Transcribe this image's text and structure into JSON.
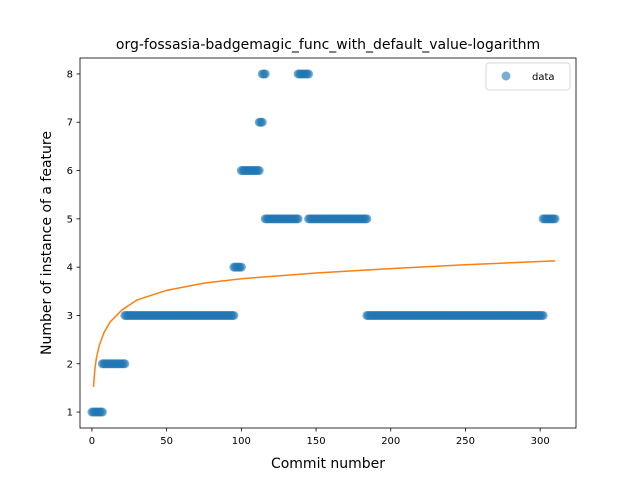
{
  "chart_data": {
    "type": "scatter",
    "title": "org-fossasia-badgemagic_func_with_default_value-logarithm",
    "xlabel": "Commit number",
    "ylabel": "Number of instance of a feature",
    "xlim": [
      -8,
      324
    ],
    "ylim": [
      0.67,
      8.33
    ],
    "xticks": [
      0,
      50,
      100,
      150,
      200,
      250,
      300
    ],
    "yticks": [
      1,
      2,
      3,
      4,
      5,
      6,
      7,
      8
    ],
    "grid": false,
    "legend": {
      "position": "top-right",
      "entries": [
        "data"
      ]
    },
    "colors": {
      "points": "#1f77b4",
      "fit": "#ff7f0e"
    },
    "series": [
      {
        "name": "data",
        "kind": "scatter",
        "segments": [
          {
            "x_start": 0,
            "x_end": 7,
            "y": 1
          },
          {
            "x_start": 7,
            "x_end": 22,
            "y": 2
          },
          {
            "x_start": 22,
            "x_end": 95,
            "y": 3
          },
          {
            "x_start": 95,
            "x_end": 100,
            "y": 4
          },
          {
            "x_start": 100,
            "x_end": 112,
            "y": 6
          },
          {
            "x_start": 112,
            "x_end": 114,
            "y": 7
          },
          {
            "x_start": 114,
            "x_end": 116,
            "y": 8
          },
          {
            "x_start": 116,
            "x_end": 138,
            "y": 5
          },
          {
            "x_start": 138,
            "x_end": 145,
            "y": 8
          },
          {
            "x_start": 145,
            "x_end": 184,
            "y": 5
          },
          {
            "x_start": 184,
            "x_end": 302,
            "y": 3
          },
          {
            "x_start": 302,
            "x_end": 310,
            "y": 5
          }
        ]
      },
      {
        "kind": "line",
        "model": "logarithmic",
        "x_range": [
          1,
          310
        ],
        "points": [
          [
            1,
            1.52
          ],
          [
            2,
            1.9
          ],
          [
            3,
            2.12
          ],
          [
            5,
            2.39
          ],
          [
            8,
            2.64
          ],
          [
            12,
            2.86
          ],
          [
            20,
            3.11
          ],
          [
            30,
            3.32
          ],
          [
            50,
            3.52
          ],
          [
            75,
            3.67
          ],
          [
            100,
            3.76
          ],
          [
            150,
            3.88
          ],
          [
            200,
            3.97
          ],
          [
            250,
            4.05
          ],
          [
            310,
            4.13
          ]
        ]
      }
    ]
  }
}
